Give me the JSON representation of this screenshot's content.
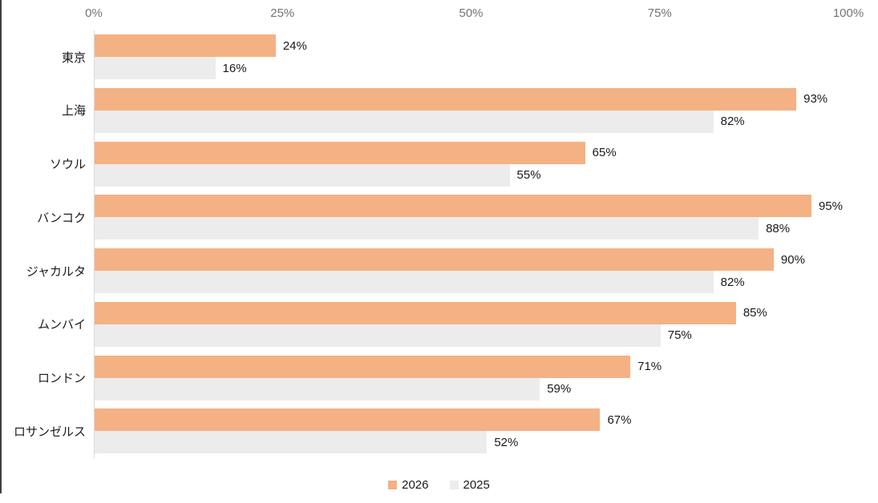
{
  "chart_data": {
    "type": "bar",
    "orientation": "horizontal",
    "title": "",
    "categories": [
      "東京",
      "上海",
      "ソウル",
      "バンコク",
      "ジャカルタ",
      "ムンバイ",
      "ロンドン",
      "ロサンゼルス"
    ],
    "series": [
      {
        "name": "2026",
        "color": "#F4B183",
        "values": [
          24,
          93,
          65,
          95,
          90,
          85,
          71,
          67
        ]
      },
      {
        "name": "2025",
        "color": "#ECECEC",
        "values": [
          16,
          82,
          55,
          88,
          82,
          75,
          59,
          52
        ]
      }
    ],
    "x_ticks": [
      "0%",
      "25%",
      "50%",
      "75%",
      "100%"
    ],
    "xlim": [
      0,
      100
    ],
    "value_suffix": "%",
    "grid": "off",
    "legend_position": "bottom",
    "colors": {
      "axis_line": "#d9d9d9",
      "tick_text": "#737373",
      "data_label_text": "#1a1a1a",
      "category_text": "#1a1a1a",
      "window_edge": "#3f3f3f"
    }
  }
}
